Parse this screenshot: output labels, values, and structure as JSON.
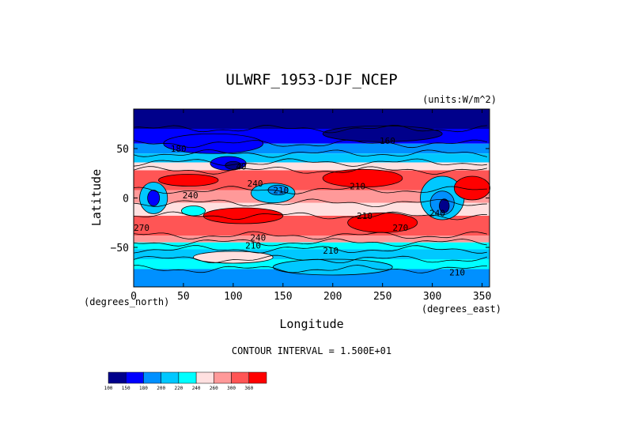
{
  "chart_data": {
    "type": "heatmap",
    "title": "ULWRF_1953-DJF_NCEP",
    "units": "(units:W/m^2)",
    "xlabel": "Longitude",
    "ylabel": "Latitude",
    "x_unit_label": "(degrees_east)",
    "y_unit_label": "(degrees_north)",
    "xlim": [
      0,
      357.5
    ],
    "ylim": [
      -90,
      90
    ],
    "x_ticks": [
      0,
      50,
      100,
      150,
      200,
      250,
      300,
      350
    ],
    "y_ticks": [
      -50,
      0,
      50
    ],
    "footer": "CONTOUR INTERVAL = 1.500E+01",
    "colorbar": {
      "levels": [
        "100",
        "150",
        "180",
        "200",
        "220",
        "240",
        "260",
        "300",
        "360"
      ],
      "colors": [
        "#00008b",
        "#0000ff",
        "#0090ff",
        "#00c8ff",
        "#00ffff",
        "#ffe0e0",
        "#ff9999",
        "#ff5555",
        "#ff0000"
      ]
    },
    "contour_labels": [
      {
        "text": "180",
        "lon": 45,
        "lat": 50
      },
      {
        "text": "40",
        "lon": 108,
        "lat": 32
      },
      {
        "text": "160",
        "lon": 255,
        "lat": 58
      },
      {
        "text": "240",
        "lon": 57,
        "lat": 3
      },
      {
        "text": "240",
        "lon": 122,
        "lat": 15
      },
      {
        "text": "210",
        "lon": 148,
        "lat": 8
      },
      {
        "text": "210",
        "lon": 225,
        "lat": 12
      },
      {
        "text": "270",
        "lon": 8,
        "lat": -30
      },
      {
        "text": "240",
        "lon": 125,
        "lat": -40
      },
      {
        "text": "210",
        "lon": 120,
        "lat": -48
      },
      {
        "text": "210",
        "lon": 232,
        "lat": -18
      },
      {
        "text": "270",
        "lon": 268,
        "lat": -30
      },
      {
        "text": "240",
        "lon": 305,
        "lat": -15
      },
      {
        "text": "210",
        "lon": 198,
        "lat": -53
      },
      {
        "text": "210",
        "lon": 325,
        "lat": -75
      }
    ]
  }
}
